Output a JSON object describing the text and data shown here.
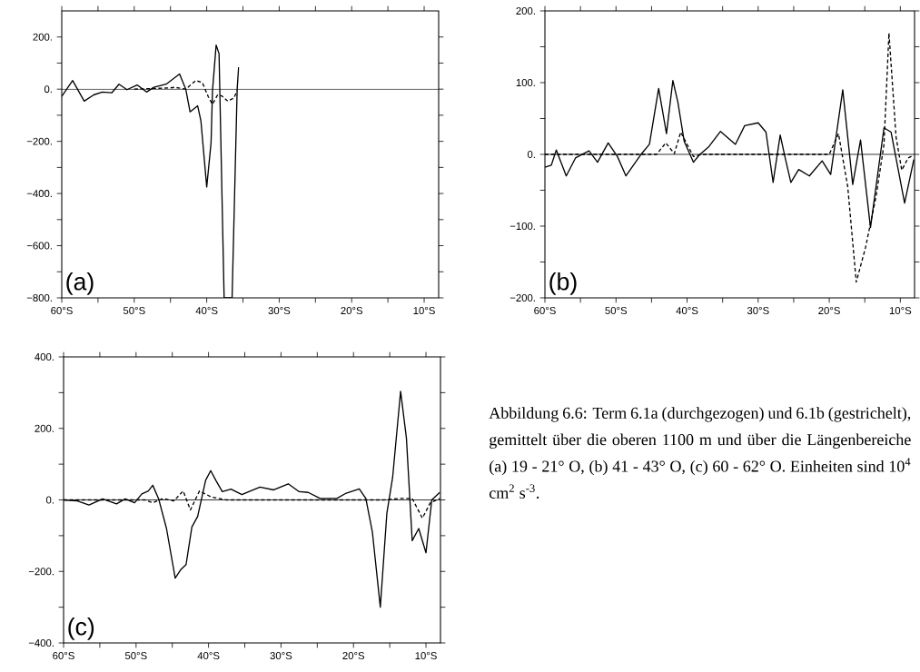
{
  "chart_data": [
    {
      "type": "line",
      "xlim": [
        -60,
        -8
      ],
      "ylim": [
        -800,
        300
      ],
      "xticks": [
        {
          "value": -60,
          "label": "60°S"
        },
        {
          "value": -55,
          "label": null
        },
        {
          "value": -50,
          "label": "50°S"
        },
        {
          "value": -45,
          "label": null
        },
        {
          "value": -40,
          "label": "40°S"
        },
        {
          "value": -35,
          "label": null
        },
        {
          "value": -30,
          "label": "30°S"
        },
        {
          "value": -25,
          "label": null
        },
        {
          "value": -20,
          "label": "20°S"
        },
        {
          "value": -15,
          "label": null
        },
        {
          "value": -10,
          "label": "10°S"
        }
      ],
      "yticks": [
        {
          "value": -800,
          "label": "−800."
        },
        {
          "value": -700,
          "label": null
        },
        {
          "value": -600,
          "label": "−600."
        },
        {
          "value": -500,
          "label": null
        },
        {
          "value": -400,
          "label": "−400."
        },
        {
          "value": -300,
          "label": null
        },
        {
          "value": -200,
          "label": "−200."
        },
        {
          "value": -100,
          "label": null
        },
        {
          "value": 0,
          "label": "0."
        },
        {
          "value": 100,
          "label": null
        },
        {
          "value": 200,
          "label": "200."
        }
      ],
      "ref_lines": [
        {
          "axis": "y",
          "value": 0
        }
      ],
      "annotations": [
        "(a)"
      ],
      "series": [
        {
          "color": "#000000",
          "line_style": "solid",
          "x": [
            -60,
            -58.5,
            -56.9,
            -55.6,
            -54.4,
            -53.1,
            -52.1,
            -51,
            -49.6,
            -48.3,
            -47.3,
            -45.6,
            -43.75,
            -42.9,
            -42.3,
            -41.25,
            -40.8,
            -40,
            -39.4,
            -39.2,
            -38.7,
            -38.3,
            -37.6,
            -36.5,
            -35.8,
            -35.6
          ],
          "values": [
            -28,
            33,
            -46,
            -22,
            -11,
            -14,
            19,
            -2,
            16,
            -11,
            7,
            19,
            58,
            1,
            -87,
            -64,
            -122,
            -375,
            -205,
            -5,
            169,
            136,
            -800,
            -800,
            1,
            84
          ]
        },
        {
          "color": "#000000",
          "line_style": "dashed",
          "x": [
            -50,
            -45,
            -44.4,
            -42.9,
            -41.5,
            -40.6,
            -39.8,
            -39.2,
            -38.5,
            -37.9,
            -37.1,
            -36.25,
            -35.8
          ],
          "values": [
            0,
            5,
            7,
            0,
            33,
            25,
            -28,
            -58,
            -22,
            -26,
            -46,
            -34,
            -5
          ]
        }
      ]
    },
    {
      "type": "line",
      "xlim": [
        -60,
        -8
      ],
      "ylim": [
        -200,
        200
      ],
      "xticks": [
        {
          "value": -60,
          "label": "60°S"
        },
        {
          "value": -55,
          "label": null
        },
        {
          "value": -50,
          "label": "50°S"
        },
        {
          "value": -45,
          "label": null
        },
        {
          "value": -40,
          "label": "40°S"
        },
        {
          "value": -35,
          "label": null
        },
        {
          "value": -30,
          "label": "30°S"
        },
        {
          "value": -25,
          "label": null
        },
        {
          "value": -20,
          "label": "20°S"
        },
        {
          "value": -15,
          "label": null
        },
        {
          "value": -10,
          "label": "10°S"
        }
      ],
      "yticks": [
        {
          "value": -200,
          "label": "−200."
        },
        {
          "value": -150,
          "label": null
        },
        {
          "value": -100,
          "label": "−100."
        },
        {
          "value": -50,
          "label": null
        },
        {
          "value": 0,
          "label": "0."
        },
        {
          "value": 50,
          "label": null
        },
        {
          "value": 100,
          "label": "100."
        },
        {
          "value": 150,
          "label": null
        },
        {
          "value": 200,
          "label": "200."
        }
      ],
      "ref_lines": [
        {
          "axis": "y",
          "value": 0
        }
      ],
      "annotations": [
        "(b)"
      ],
      "series": [
        {
          "color": "#000000",
          "line_style": "solid",
          "x": [
            -60,
            -59.1,
            -58.4,
            -57,
            -55.7,
            -53.8,
            -52.6,
            -51.1,
            -49.8,
            -48.6,
            -46.4,
            -45.3,
            -44,
            -42.9,
            -42,
            -41.3,
            -40.4,
            -39.1,
            -38.3,
            -37,
            -35.3,
            -33.2,
            -31.9,
            -30,
            -28.9,
            -27.9,
            -26.9,
            -26.2,
            -25.4,
            -24.3,
            -22.8,
            -21,
            -19.8,
            -18.1,
            -16.7,
            -15.6,
            -14.2,
            -12.3,
            -11.3,
            -9.4,
            -8.1
          ],
          "values": [
            -18,
            -15,
            6,
            -30,
            -5,
            5,
            -11,
            16,
            -3,
            -30,
            1,
            14,
            92,
            29,
            103,
            73,
            18,
            -11,
            -1,
            10,
            32,
            14,
            40,
            44,
            31,
            -39,
            27,
            -5,
            -39,
            -21,
            -30,
            -9,
            -28,
            90,
            -42,
            20,
            -102,
            37,
            31,
            -68,
            -7
          ]
        },
        {
          "color": "#000000",
          "line_style": "dashed",
          "x": [
            -60,
            -44.3,
            -43,
            -41.8,
            -40.9,
            -39.1,
            -37.9,
            -20,
            -18.7,
            -17.4,
            -16.2,
            -14.9,
            -13.4,
            -12.3,
            -11.6,
            -10.6,
            -9.8,
            -8.9,
            -8.1
          ],
          "values": [
            0,
            0,
            16,
            1,
            31,
            -3,
            0,
            0,
            29,
            -45,
            -178,
            -130,
            -58,
            14,
            169,
            24,
            -22,
            -5,
            -1
          ]
        }
      ]
    },
    {
      "type": "line",
      "xlim": [
        -60,
        -8
      ],
      "ylim": [
        -400,
        400
      ],
      "xticks": [
        {
          "value": -60,
          "label": "60°S"
        },
        {
          "value": -55,
          "label": null
        },
        {
          "value": -50,
          "label": "50°S"
        },
        {
          "value": -45,
          "label": null
        },
        {
          "value": -40,
          "label": "40°S"
        },
        {
          "value": -35,
          "label": null
        },
        {
          "value": -30,
          "label": "30°S"
        },
        {
          "value": -25,
          "label": null
        },
        {
          "value": -20,
          "label": "20°S"
        },
        {
          "value": -15,
          "label": null
        },
        {
          "value": -10,
          "label": "10°S"
        }
      ],
      "yticks": [
        {
          "value": -400,
          "label": "−400."
        },
        {
          "value": -300,
          "label": null
        },
        {
          "value": -200,
          "label": "−200."
        },
        {
          "value": -100,
          "label": null
        },
        {
          "value": 0,
          "label": "0."
        },
        {
          "value": 100,
          "label": null
        },
        {
          "value": 200,
          "label": "200."
        },
        {
          "value": 300,
          "label": null
        },
        {
          "value": 400,
          "label": "400."
        }
      ],
      "ref_lines": [
        {
          "axis": "y",
          "value": 0
        }
      ],
      "annotations": [
        "(c)"
      ],
      "series": [
        {
          "color": "#000000",
          "line_style": "solid",
          "x": [
            -60,
            -58.1,
            -56.5,
            -54.6,
            -52.7,
            -51.5,
            -50.2,
            -49.2,
            -48.3,
            -47.7,
            -46.9,
            -45.8,
            -44.6,
            -43.8,
            -43.1,
            -42.3,
            -41.5,
            -40.4,
            -39.7,
            -39,
            -38.1,
            -36.9,
            -35.4,
            -34.2,
            -32.9,
            -31,
            -29,
            -27.5,
            -26.25,
            -24.6,
            -22.3,
            -21,
            -19.2,
            -18.3,
            -17.4,
            -16.3,
            -15.4,
            -14.6,
            -13.5,
            -12.7,
            -11.9,
            -11,
            -10,
            -9.2,
            -8.1
          ],
          "values": [
            0,
            -3,
            -14,
            3,
            -11,
            3,
            -8,
            17,
            25,
            41,
            4,
            -80,
            -219,
            -194,
            -181,
            -76,
            -46,
            55,
            82,
            55,
            23,
            30,
            15,
            25,
            36,
            28,
            45,
            23,
            21,
            4,
            4,
            19,
            31,
            4,
            -89,
            -300,
            -38,
            63,
            304,
            173,
            -114,
            -80,
            -148,
            0,
            21
          ]
        },
        {
          "color": "#000000",
          "line_style": "dashed",
          "x": [
            -60,
            -48.75,
            -47.7,
            -46.25,
            -44.8,
            -43.5,
            -42.5,
            -41.25,
            -39.6,
            -37.5,
            -15.8,
            -13.75,
            -11.9,
            -10.5,
            -9.4,
            -8.1
          ],
          "values": [
            0,
            0,
            -8,
            4,
            -3,
            25,
            -28,
            25,
            8,
            0,
            0,
            4,
            4,
            -51,
            -8,
            4
          ]
        }
      ]
    },
    {
      "type": "other",
      "annotations": [
        "Abbildung 6.6: Term 6.1a (durchgezogen) und 6.1b (gestrichelt), gemittelt über die oberen 1100 m und über die Längenbereiche (a) 19 - 21° O, (b) 41 - 43° O, (c) 60 - 62° O. Einheiten sind 10$^{4}$ cm$^{2}$ s$^{-3}$."
      ]
    }
  ]
}
